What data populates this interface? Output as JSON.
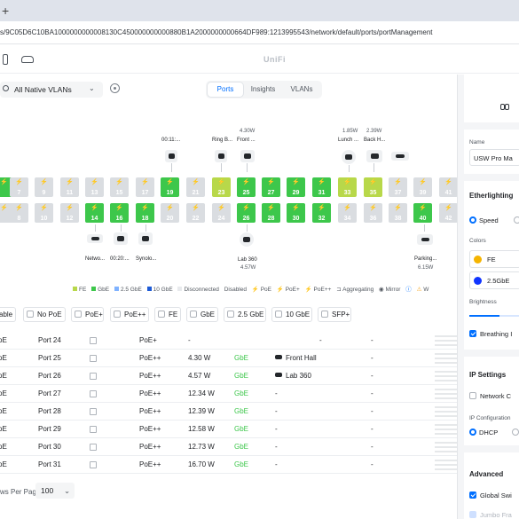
{
  "browser": {
    "new_tab": "+",
    "url": "s/9C05D6C10BA1000000000008130C450000000000880B1A2000000000664DF989:1213995543/network/default/ports/portManagement"
  },
  "app": {
    "brand": "UniFi"
  },
  "toolbar": {
    "vlan_filter": "All Native VLANs",
    "tabs": [
      "Ports",
      "Insights",
      "VLANs"
    ],
    "active_tab": "Ports"
  },
  "devices": {
    "top": [
      {
        "label": "00:11:...",
        "watt": ""
      },
      {
        "label": "Ring B...",
        "watt": ""
      },
      {
        "label": "Front ...",
        "watt": "4.30W"
      },
      {
        "label": "Lunch ...",
        "watt": "1.85W"
      },
      {
        "label": "Back H...",
        "watt": "2.39W"
      }
    ],
    "bottom": [
      {
        "label": "Netwo...",
        "watt": ""
      },
      {
        "label": "00:20:...",
        "watt": ""
      },
      {
        "label": "Synolo...",
        "watt": ""
      },
      {
        "label": "Lab 360",
        "watt": "4.57W"
      },
      {
        "label": "Parking...",
        "watt": "6.15W"
      }
    ]
  },
  "ports": {
    "top": [
      {
        "n": "",
        "s": "ge"
      },
      {
        "n": "7",
        "s": "off"
      },
      {
        "n": "9",
        "s": "off"
      },
      {
        "n": "11",
        "s": "off"
      },
      {
        "n": "13",
        "s": "off"
      },
      {
        "n": "15",
        "s": "off"
      },
      {
        "n": "17",
        "s": "off"
      },
      {
        "n": "19",
        "s": "ge"
      },
      {
        "n": "21",
        "s": "off"
      },
      {
        "n": "23",
        "s": "fe"
      },
      {
        "n": "25",
        "s": "ge"
      },
      {
        "n": "27",
        "s": "ge"
      },
      {
        "n": "29",
        "s": "ge"
      },
      {
        "n": "31",
        "s": "ge"
      },
      {
        "n": "33",
        "s": "fe"
      },
      {
        "n": "35",
        "s": "fe"
      },
      {
        "n": "37",
        "s": "off"
      },
      {
        "n": "39",
        "s": "off"
      },
      {
        "n": "41",
        "s": "off"
      }
    ],
    "bottom": [
      {
        "n": "",
        "s": "off"
      },
      {
        "n": "8",
        "s": "off"
      },
      {
        "n": "10",
        "s": "off"
      },
      {
        "n": "12",
        "s": "off"
      },
      {
        "n": "14",
        "s": "ge"
      },
      {
        "n": "16",
        "s": "ge"
      },
      {
        "n": "18",
        "s": "ge"
      },
      {
        "n": "20",
        "s": "off"
      },
      {
        "n": "22",
        "s": "off"
      },
      {
        "n": "24",
        "s": "off"
      },
      {
        "n": "26",
        "s": "ge"
      },
      {
        "n": "28",
        "s": "ge"
      },
      {
        "n": "30",
        "s": "ge"
      },
      {
        "n": "32",
        "s": "ge"
      },
      {
        "n": "34",
        "s": "off"
      },
      {
        "n": "36",
        "s": "off"
      },
      {
        "n": "38",
        "s": "off"
      },
      {
        "n": "40",
        "s": "ge"
      },
      {
        "n": "42",
        "s": "off"
      }
    ]
  },
  "legend": [
    "FE",
    "GbE",
    "2.5 GbE",
    "10 GbE",
    "Disconnected",
    "Disabled",
    "PoE",
    "PoE+",
    "PoE++",
    "Aggregating",
    "Mirror",
    "W"
  ],
  "colors": {
    "fe": "#b8d84a",
    "ge": "#3dc74b",
    "ge25": "#7fb2ff",
    "ge10": "#1e5bd6",
    "accent": "#006fff",
    "warn": "#f5a623"
  },
  "filters": [
    "able",
    "No PoE",
    "PoE+",
    "PoE++",
    "FE",
    "GbE",
    "2.5 GbE",
    "10 GbE",
    "SFP+"
  ],
  "table_rows": [
    {
      "poe_col": "oE",
      "port": "Port 24",
      "poe": "PoE+",
      "power": "-",
      "speed": "",
      "device": "",
      "has_dev": false,
      "col8": "-",
      "col9": "-"
    },
    {
      "poe_col": "oE",
      "port": "Port 25",
      "poe": "PoE++",
      "power": "4.30 W",
      "speed": "GbE",
      "device": "Front Hall",
      "has_dev": true,
      "col8": "-",
      "col9": "-"
    },
    {
      "poe_col": "oE",
      "port": "Port 26",
      "poe": "PoE++",
      "power": "4.57 W",
      "speed": "GbE",
      "device": "Lab 360",
      "has_dev": true,
      "col8": "-",
      "col9": "-"
    },
    {
      "poe_col": "oE",
      "port": "Port 27",
      "poe": "PoE++",
      "power": "12.34 W",
      "speed": "GbE",
      "device": "",
      "has_dev": false,
      "col8": "-",
      "col9": "-"
    },
    {
      "poe_col": "oE",
      "port": "Port 28",
      "poe": "PoE++",
      "power": "12.39 W",
      "speed": "GbE",
      "device": "",
      "has_dev": false,
      "col8": "-",
      "col9": "-"
    },
    {
      "poe_col": "oE",
      "port": "Port 29",
      "poe": "PoE++",
      "power": "12.58 W",
      "speed": "GbE",
      "device": "",
      "has_dev": false,
      "col8": "-",
      "col9": "-"
    },
    {
      "poe_col": "oE",
      "port": "Port 30",
      "poe": "PoE++",
      "power": "12.73 W",
      "speed": "GbE",
      "device": "",
      "has_dev": false,
      "col8": "-",
      "col9": "-"
    },
    {
      "poe_col": "oE",
      "port": "Port 31",
      "poe": "PoE++",
      "power": "16.70 W",
      "speed": "GbE",
      "device": "",
      "has_dev": false,
      "col8": "-",
      "col9": "-"
    }
  ],
  "footer": {
    "rows_per_page_label": "ws Per Page:",
    "rows_per_page": "100"
  },
  "panel": {
    "name_label": "Name",
    "name_value": "USW Pro Ma",
    "etherlighting_title": "Etherlighting",
    "mode_options": [
      "Speed",
      ""
    ],
    "colors_label": "Colors",
    "color_items": [
      {
        "label": "FE",
        "color": "#f5b400"
      },
      {
        "label": "2.5GbE",
        "color": "#1035ff"
      }
    ],
    "brightness_label": "Brightness",
    "brightness_value": 0.6,
    "breathing_label": "Breathing I",
    "ip_title": "IP Settings",
    "network_override_label": "Network C",
    "ip_config_label": "IP Configuration",
    "ip_options": [
      "DHCP",
      ""
    ],
    "advanced_title": "Advanced",
    "global_switch_label": "Global Swi",
    "jumbo_label": "Jumbo Fra"
  }
}
